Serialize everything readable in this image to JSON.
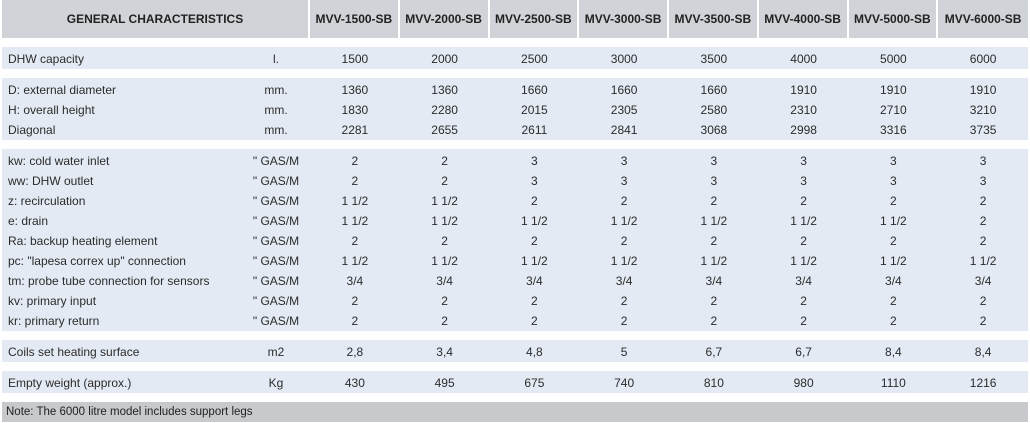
{
  "header": {
    "title": "GENERAL CHARACTERISTICS",
    "models": [
      "MVV-1500-SB",
      "MVV-2000-SB",
      "MVV-2500-SB",
      "MVV-3000-SB",
      "MVV-3500-SB",
      "MVV-4000-SB",
      "MVV-5000-SB",
      "MVV-6000-SB"
    ]
  },
  "groups": [
    [
      {
        "label": "DHW capacity",
        "unit": "l.",
        "values": [
          "1500",
          "2000",
          "2500",
          "3000",
          "3500",
          "4000",
          "5000",
          "6000"
        ]
      }
    ],
    [
      {
        "label": "D: external diameter",
        "unit": "mm.",
        "values": [
          "1360",
          "1360",
          "1660",
          "1660",
          "1660",
          "1910",
          "1910",
          "1910"
        ]
      },
      {
        "label": "H: overall height",
        "unit": "mm.",
        "values": [
          "1830",
          "2280",
          "2015",
          "2305",
          "2580",
          "2310",
          "2710",
          "3210"
        ]
      },
      {
        "label": "Diagonal",
        "unit": "mm.",
        "values": [
          "2281",
          "2655",
          "2611",
          "2841",
          "3068",
          "2998",
          "3316",
          "3735"
        ]
      }
    ],
    [
      {
        "label": "kw: cold water inlet",
        "unit": "\" GAS/M",
        "values": [
          "2",
          "2",
          "3",
          "3",
          "3",
          "3",
          "3",
          "3"
        ]
      },
      {
        "label": "ww: DHW outlet",
        "unit": "\" GAS/M",
        "values": [
          "2",
          "2",
          "3",
          "3",
          "3",
          "3",
          "3",
          "3"
        ]
      },
      {
        "label": "z: recirculation",
        "unit": "\" GAS/M",
        "values": [
          "1 1/2",
          "1 1/2",
          "2",
          "2",
          "2",
          "2",
          "2",
          "2"
        ]
      },
      {
        "label": "e: drain",
        "unit": "\" GAS/M",
        "values": [
          "1 1/2",
          "1 1/2",
          "1 1/2",
          "1 1/2",
          "1 1/2",
          "1 1/2",
          "1 1/2",
          "2"
        ]
      },
      {
        "label": "Ra: backup heating element",
        "unit": "\" GAS/M",
        "values": [
          "2",
          "2",
          "2",
          "2",
          "2",
          "2",
          "2",
          "2"
        ]
      },
      {
        "label": "pc: \"lapesa correx up\" connection",
        "unit": "\" GAS/M",
        "values": [
          "1 1/2",
          "1 1/2",
          "1 1/2",
          "1 1/2",
          "1 1/2",
          "1 1/2",
          "1 1/2",
          "1 1/2"
        ]
      },
      {
        "label": "tm: probe tube connection for sensors",
        "unit": "\" GAS/M",
        "values": [
          "3/4",
          "3/4",
          "3/4",
          "3/4",
          "3/4",
          "3/4",
          "3/4",
          "3/4"
        ]
      },
      {
        "label": "kv: primary input",
        "unit": "\" GAS/M",
        "values": [
          "2",
          "2",
          "2",
          "2",
          "2",
          "2",
          "2",
          "2"
        ]
      },
      {
        "label": "kr: primary return",
        "unit": "\" GAS/M",
        "values": [
          "2",
          "2",
          "2",
          "2",
          "2",
          "2",
          "2",
          "2"
        ]
      }
    ],
    [
      {
        "label": "Coils set heating surface",
        "unit": "m2",
        "values": [
          "2,8",
          "3,4",
          "4,8",
          "5",
          "6,7",
          "6,7",
          "8,4",
          "8,4"
        ]
      }
    ],
    [
      {
        "label": "Empty weight (approx.)",
        "unit": "Kg",
        "values": [
          "430",
          "495",
          "675",
          "740",
          "810",
          "980",
          "1110",
          "1216"
        ]
      }
    ]
  ],
  "note": "Note: The 6000 litre model includes support legs"
}
